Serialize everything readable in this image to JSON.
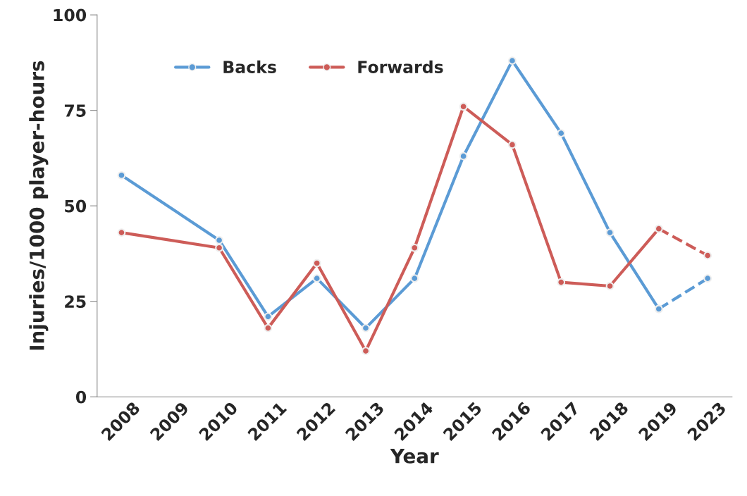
{
  "chart_data": {
    "type": "line",
    "xlabel": "Year",
    "ylabel": "Injuries/1000 player-hours",
    "categories": [
      "2008",
      "2009",
      "2010",
      "2011",
      "2012",
      "2013",
      "2014",
      "2015",
      "2016",
      "2017",
      "2018",
      "2019",
      "2023"
    ],
    "series": [
      {
        "name": "Backs",
        "color": "#5b9bd5",
        "line_style": "solid",
        "values": [
          58,
          null,
          41,
          21,
          31,
          18,
          31,
          63,
          88,
          69,
          43,
          23,
          null
        ]
      },
      {
        "name": "Forwards",
        "color": "#cd5c58",
        "line_style": "solid",
        "values": [
          43,
          null,
          39,
          18,
          35,
          12,
          39,
          76,
          66,
          30,
          29,
          44,
          null
        ]
      },
      {
        "color": "#5b9bd5",
        "line_style": "dashed",
        "values": [
          null,
          null,
          null,
          null,
          null,
          null,
          null,
          null,
          null,
          null,
          null,
          23,
          31
        ]
      },
      {
        "color": "#cd5c58",
        "line_style": "dashed",
        "values": [
          null,
          null,
          null,
          null,
          null,
          null,
          null,
          null,
          null,
          null,
          null,
          44,
          37
        ]
      }
    ],
    "ylim": [
      0,
      100
    ],
    "yticks": [
      0,
      25,
      50,
      75,
      100
    ],
    "grid": false,
    "legend": "top left",
    "marker": "circle"
  }
}
